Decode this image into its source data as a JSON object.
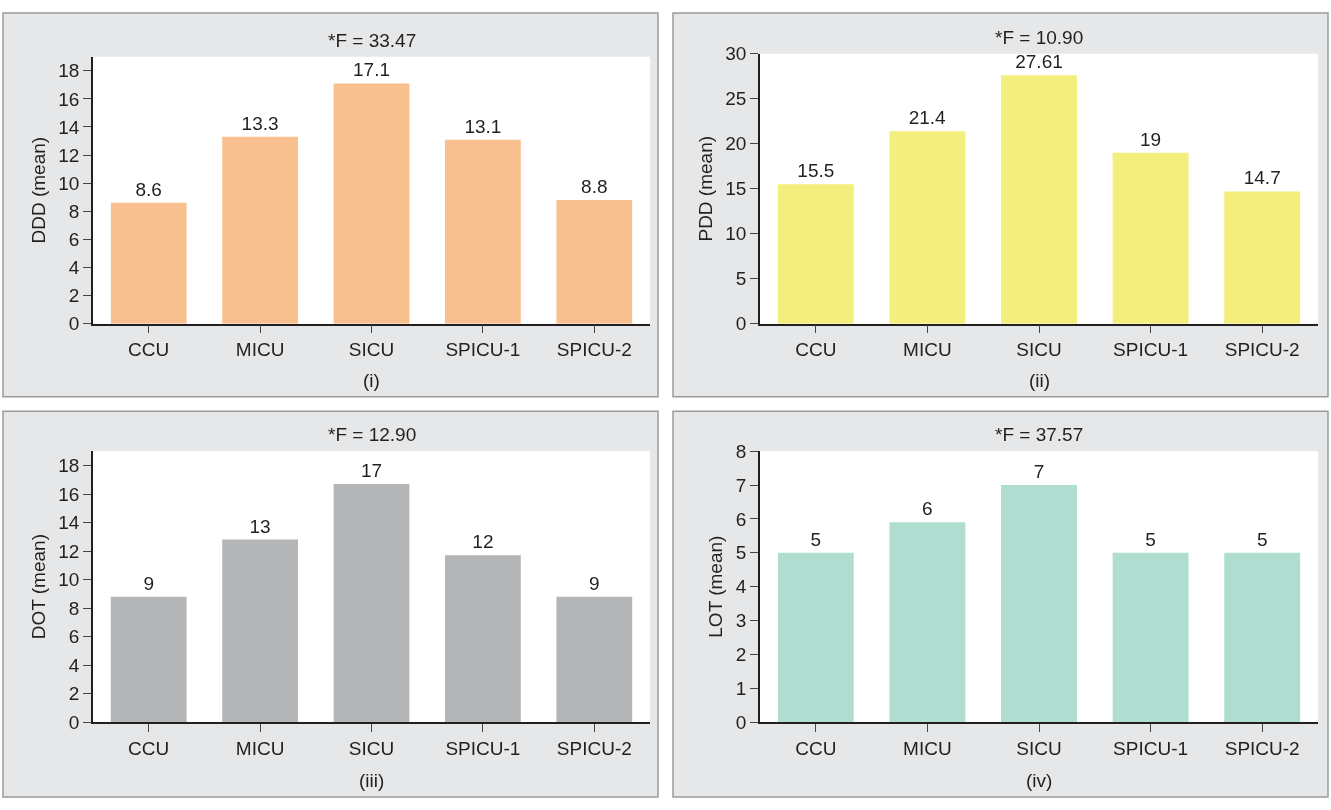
{
  "chart_data": [
    {
      "type": "bar",
      "title": "*F = 33.47",
      "xlabel": "(i)",
      "ylabel": "DDD (mean)",
      "categories": [
        "CCU",
        "MICU",
        "SICU",
        "SPICU-1",
        "SPICU-2"
      ],
      "values": [
        8.6,
        13.3,
        17.1,
        13.1,
        8.8
      ],
      "color": "#f9c08f",
      "ylim": [
        0,
        19
      ],
      "yticks": [
        0,
        2,
        4,
        6,
        8,
        10,
        12,
        14,
        16,
        18
      ],
      "data_labels": true
    },
    {
      "type": "bar",
      "title": "*F = 10.90",
      "xlabel": "(ii)",
      "ylabel": "PDD (mean)",
      "categories": [
        "CCU",
        "MICU",
        "SICU",
        "SPICU-1",
        "SPICU-2"
      ],
      "values": [
        15.5,
        21.4,
        27.61,
        19,
        14.7
      ],
      "color": "#f4ee7c",
      "ylim": [
        0,
        30
      ],
      "yticks": [
        0,
        5,
        10,
        15,
        20,
        25,
        30
      ],
      "data_labels": true
    },
    {
      "type": "bar",
      "title": "*F = 12.90",
      "xlabel": "(iii)",
      "ylabel": "DOT (mean)",
      "categories": [
        "CCU",
        "MICU",
        "SICU",
        "SPICU-1",
        "SPICU-2"
      ],
      "values": [
        8.8,
        12.8,
        16.7,
        11.7,
        8.8
      ],
      "value_labels": [
        "9",
        "13",
        "17",
        "12",
        "9"
      ],
      "color": "#b3b5b6",
      "ylim": [
        0,
        19
      ],
      "yticks": [
        0,
        2,
        4,
        6,
        8,
        10,
        12,
        14,
        16,
        18
      ]
    },
    {
      "type": "bar",
      "title": "*F = 37.57",
      "xlabel": "(iv)",
      "ylabel": "LOT (mean)",
      "categories": [
        "CCU",
        "MICU",
        "SICU",
        "SPICU-1",
        "SPICU-2"
      ],
      "values": [
        5,
        5.9,
        7,
        5.0,
        5.0
      ],
      "value_labels": [
        "5",
        "6",
        "7",
        "5",
        "5"
      ],
      "color": "#afddd0",
      "ylim": [
        0,
        8
      ],
      "yticks": [
        0,
        1,
        2,
        3,
        4,
        5,
        6,
        7,
        8
      ]
    }
  ]
}
